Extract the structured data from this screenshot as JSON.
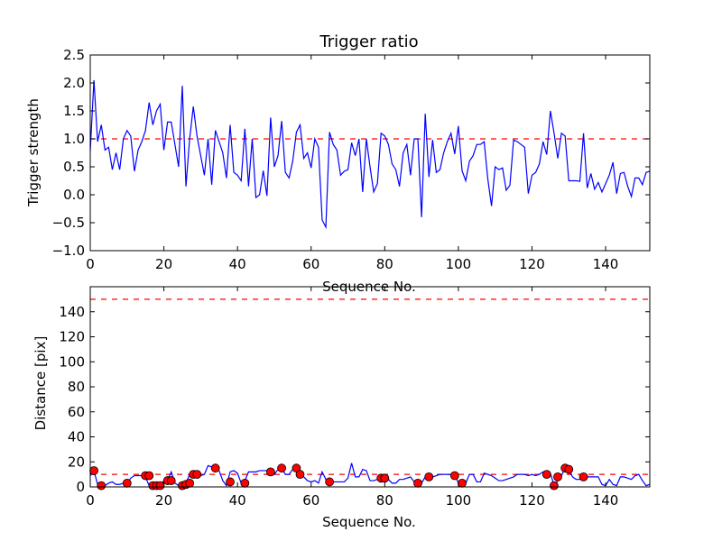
{
  "chart_data": [
    {
      "type": "line",
      "title": "Trigger ratio",
      "xlabel": "Sequence No.",
      "ylabel": "Trigger strength",
      "xlim": [
        0,
        152
      ],
      "ylim": [
        -1.0,
        2.5
      ],
      "xticks": [
        0,
        20,
        40,
        60,
        80,
        100,
        120,
        140
      ],
      "yticks": [
        -1.0,
        -0.5,
        0.0,
        0.5,
        1.0,
        1.5,
        2.0,
        2.5
      ],
      "ytick_labels": [
        "−1.0",
        "−0.5",
        "0.0",
        "0.5",
        "1.0",
        "1.5",
        "2.0",
        "2.5"
      ],
      "series": [
        {
          "name": "trigger strength",
          "color": "#0000ff",
          "x": [
            0,
            1,
            2,
            3,
            4,
            5,
            6,
            7,
            8,
            9,
            10,
            11,
            12,
            13,
            14,
            15,
            16,
            17,
            18,
            19,
            20,
            21,
            22,
            23,
            24,
            25,
            26,
            27,
            28,
            29,
            30,
            31,
            32,
            33,
            34,
            35,
            36,
            37,
            38,
            39,
            40,
            41,
            42,
            43,
            44,
            45,
            46,
            47,
            48,
            49,
            50,
            51,
            52,
            53,
            54,
            55,
            56,
            57,
            58,
            59,
            60,
            61,
            62,
            63,
            64,
            65,
            66,
            67,
            68,
            69,
            70,
            71,
            72,
            73,
            74,
            75,
            76,
            77,
            78,
            79,
            80,
            81,
            82,
            83,
            84,
            85,
            86,
            87,
            88,
            89,
            90,
            91,
            92,
            93,
            94,
            95,
            96,
            97,
            98,
            99,
            100,
            101,
            102,
            103,
            104,
            105,
            106,
            107,
            108,
            109,
            110,
            111,
            112,
            113,
            114,
            115,
            116,
            117,
            118,
            119,
            120,
            121,
            122,
            123,
            124,
            125,
            126,
            127,
            128,
            129,
            130,
            131,
            132,
            133,
            134,
            135,
            136,
            137,
            138,
            139,
            140,
            141,
            142,
            143,
            144,
            145,
            146,
            147,
            148,
            149,
            150,
            151,
            152
          ],
          "y": [
            0.78,
            2.05,
            0.95,
            1.25,
            0.8,
            0.85,
            0.45,
            0.75,
            0.45,
            1.0,
            1.15,
            1.05,
            0.42,
            0.8,
            0.95,
            1.15,
            1.65,
            1.25,
            1.5,
            1.62,
            0.8,
            1.3,
            1.3,
            0.9,
            0.5,
            1.95,
            0.15,
            1.0,
            1.58,
            1.05,
            0.7,
            0.35,
            1.0,
            0.18,
            1.15,
            0.95,
            0.75,
            0.3,
            1.25,
            0.4,
            0.35,
            0.25,
            1.18,
            0.15,
            1.0,
            -0.05,
            0.0,
            0.43,
            -0.02,
            1.38,
            0.5,
            0.7,
            1.32,
            0.4,
            0.3,
            0.6,
            1.12,
            1.25,
            0.65,
            0.75,
            0.48,
            1.0,
            0.85,
            -0.45,
            -0.58,
            1.12,
            0.9,
            0.8,
            0.35,
            0.42,
            0.45,
            0.93,
            0.7,
            1.0,
            0.05,
            1.0,
            0.5,
            0.05,
            0.2,
            1.1,
            1.05,
            0.9,
            0.55,
            0.45,
            0.15,
            0.75,
            0.9,
            0.35,
            1.0,
            1.0,
            -0.4,
            1.45,
            0.32,
            0.98,
            0.4,
            0.45,
            0.75,
            0.95,
            1.1,
            0.73,
            1.23,
            0.43,
            0.25,
            0.6,
            0.7,
            0.9,
            0.9,
            0.95,
            0.28,
            -0.2,
            0.5,
            0.45,
            0.48,
            0.08,
            0.17,
            0.98,
            0.95,
            0.9,
            0.85,
            0.02,
            0.35,
            0.4,
            0.55,
            0.95,
            0.72,
            1.5,
            1.1,
            0.65,
            1.1,
            1.05,
            0.25,
            0.25,
            0.25,
            0.24,
            1.1,
            0.12,
            0.38,
            0.1,
            0.22,
            0.05,
            0.2,
            0.35,
            0.58,
            0.02,
            0.38,
            0.4,
            0.15,
            -0.03,
            0.3,
            0.3,
            0.18,
            0.4,
            0.42
          ]
        }
      ],
      "reference_lines": [
        {
          "y": 1.0,
          "color": "#ff0000",
          "style": "dashed"
        }
      ]
    },
    {
      "type": "line",
      "title": "",
      "xlabel": "Sequence No.",
      "ylabel": "Distance [pix]",
      "xlim": [
        0,
        152
      ],
      "ylim": [
        0,
        160
      ],
      "xticks": [
        0,
        20,
        40,
        60,
        80,
        100,
        120,
        140
      ],
      "yticks": [
        0,
        20,
        40,
        60,
        80,
        100,
        120,
        140
      ],
      "ytick_labels": [
        "0",
        "20",
        "40",
        "60",
        "80",
        "100",
        "120",
        "140"
      ],
      "series": [
        {
          "name": "distance",
          "color": "#0000ff",
          "x": [
            0,
            1,
            2,
            3,
            4,
            5,
            6,
            7,
            8,
            9,
            10,
            11,
            12,
            13,
            14,
            15,
            16,
            17,
            18,
            19,
            20,
            21,
            22,
            23,
            24,
            25,
            26,
            27,
            28,
            29,
            30,
            31,
            32,
            33,
            34,
            35,
            36,
            37,
            38,
            39,
            40,
            41,
            42,
            43,
            44,
            45,
            46,
            47,
            48,
            49,
            50,
            51,
            52,
            53,
            54,
            55,
            56,
            57,
            58,
            59,
            60,
            61,
            62,
            63,
            64,
            65,
            66,
            67,
            68,
            69,
            70,
            71,
            72,
            73,
            74,
            75,
            76,
            77,
            78,
            79,
            80,
            81,
            82,
            83,
            84,
            85,
            86,
            87,
            88,
            89,
            90,
            91,
            92,
            93,
            94,
            95,
            96,
            97,
            98,
            99,
            100,
            101,
            102,
            103,
            104,
            105,
            106,
            107,
            108,
            109,
            110,
            111,
            112,
            113,
            114,
            115,
            116,
            117,
            118,
            119,
            120,
            121,
            122,
            123,
            124,
            125,
            126,
            127,
            128,
            129,
            130,
            131,
            132,
            133,
            134,
            135,
            136,
            137,
            138,
            139,
            140,
            141,
            142,
            143,
            144,
            145,
            146,
            147,
            148,
            149,
            150,
            151,
            152
          ],
          "y": [
            9,
            13,
            2,
            1,
            1,
            3,
            4,
            2,
            2,
            3,
            3,
            7,
            9,
            9,
            9,
            8,
            1,
            1,
            1,
            1,
            5,
            5,
            12,
            3,
            1,
            2,
            3,
            10,
            10,
            10,
            9,
            10,
            17,
            16,
            15,
            13,
            5,
            1,
            12,
            13,
            11,
            3,
            5,
            12,
            12,
            12,
            13,
            13,
            13,
            12,
            10,
            14,
            15,
            10,
            10,
            14,
            15,
            10,
            8,
            5,
            4,
            5,
            3,
            12,
            6,
            5,
            4,
            4,
            4,
            4,
            7,
            19,
            8,
            8,
            14,
            13,
            5,
            5,
            6,
            6,
            7,
            6,
            3,
            3,
            6,
            6,
            7,
            8,
            4,
            3,
            3,
            8,
            8,
            8,
            9,
            10,
            10,
            10,
            10,
            10,
            3,
            3,
            3,
            10,
            10,
            4,
            4,
            11,
            10,
            9,
            7,
            5,
            5,
            6,
            7,
            8,
            10,
            10,
            10,
            9,
            10,
            9,
            10,
            12,
            12,
            11,
            1,
            5,
            9,
            15,
            14,
            8,
            6,
            6,
            8,
            8,
            8,
            8,
            8,
            2,
            1,
            6,
            2,
            1,
            8,
            8,
            7,
            6,
            9,
            10,
            5,
            1,
            2
          ]
        },
        {
          "name": "markers",
          "type": "scatter",
          "color": "#ff0000",
          "x": [
            1,
            3,
            10,
            15,
            16,
            17,
            18,
            19,
            21,
            22,
            25,
            26,
            27,
            28,
            29,
            34,
            38,
            42,
            49,
            52,
            56,
            57,
            65,
            79,
            80,
            89,
            92,
            99,
            101,
            124,
            126,
            127,
            129,
            130,
            134
          ],
          "y": [
            13,
            1,
            3,
            9,
            9,
            1,
            1,
            1,
            5,
            5,
            1,
            2,
            3,
            10,
            10,
            15,
            4,
            3,
            12,
            15,
            15,
            10,
            4,
            7,
            7,
            3,
            8,
            9,
            3,
            10,
            1,
            8,
            15,
            14,
            8
          ]
        }
      ],
      "reference_lines": [
        {
          "y": 150,
          "color": "#ff0000",
          "style": "dashed"
        },
        {
          "y": 10,
          "color": "#ff0000",
          "style": "dashed"
        }
      ]
    }
  ]
}
